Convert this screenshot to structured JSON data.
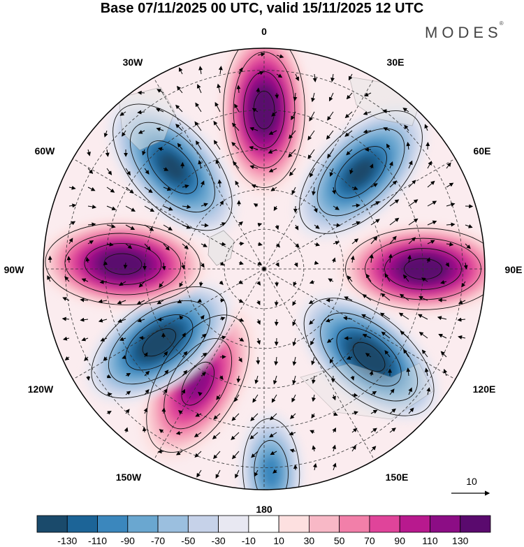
{
  "title": "Base 07/11/2025 00 UTC, valid 15/11/2025 12 UTC",
  "brand": "MODES",
  "brand_mark": "®",
  "longitude_labels": {
    "n0": "0",
    "w30": "30W",
    "e30": "30E",
    "w60": "60W",
    "e60": "60E",
    "w90": "90W",
    "e90": "90E",
    "w120": "120W",
    "e120": "120E",
    "w150": "150W",
    "e150": "150E",
    "s180": "180"
  },
  "reference_vector": {
    "label": "10",
    "magnitude": 10
  },
  "colorbar": {
    "colors": [
      "#1a4a6b",
      "#1c6497",
      "#3b87bd",
      "#6aa7d0",
      "#9bbfdf",
      "#c6d2e9",
      "#e8e8f2",
      "#ffffff",
      "#fde0e0",
      "#f8b8c6",
      "#f27fa9",
      "#e0449a",
      "#b8198e",
      "#8c0d85",
      "#5a0a6e"
    ],
    "tick_labels": [
      "-130",
      "-110",
      "-90",
      "-70",
      "-50",
      "-30",
      "-10",
      "10",
      "30",
      "50",
      "70",
      "90",
      "110",
      "130"
    ]
  },
  "anomaly_lobes": [
    {
      "lon": 0,
      "r": 0.72,
      "value": 150
    },
    {
      "lon": 45,
      "r": 0.62,
      "value": -130
    },
    {
      "lon": 90,
      "r": 0.72,
      "value": 150
    },
    {
      "lon": 130,
      "r": 0.62,
      "value": -150
    },
    {
      "lon": 210,
      "r": 0.6,
      "value": 110
    },
    {
      "lon": 235,
      "r": 0.58,
      "value": -150
    },
    {
      "lon": 272,
      "r": 0.64,
      "value": 150
    },
    {
      "lon": 318,
      "r": 0.62,
      "value": -130
    },
    {
      "lon": 178,
      "r": 0.92,
      "value": -90
    }
  ]
}
